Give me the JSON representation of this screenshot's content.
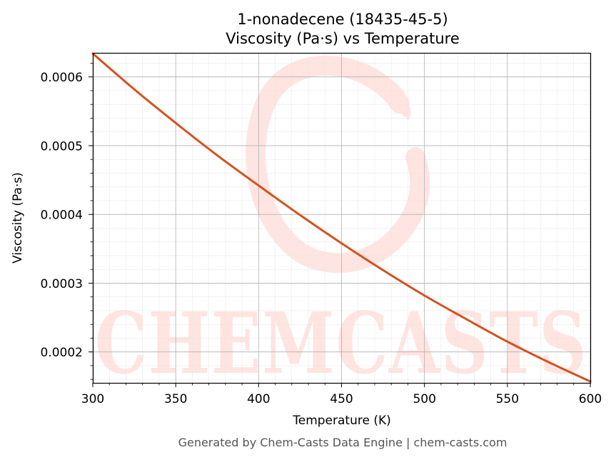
{
  "chart_data": {
    "type": "line",
    "title": "1-nonadecene (18435-45-5)",
    "subtitle": "Viscosity (Pa·s) vs Temperature",
    "xlabel": "Temperature (K)",
    "ylabel": "Viscosity (Pa·s)",
    "xlim": [
      300,
      600
    ],
    "ylim": [
      0.000155,
      0.000635
    ],
    "xticks": [
      300,
      350,
      400,
      450,
      500,
      550,
      600
    ],
    "xtick_labels": [
      "300",
      "350",
      "400",
      "450",
      "500",
      "550",
      "600"
    ],
    "yticks": [
      0.0002,
      0.0003,
      0.0004,
      0.0005,
      0.0006
    ],
    "ytick_labels": [
      "0.0002",
      "0.0003",
      "0.0004",
      "0.0005",
      "0.0006"
    ],
    "grid": true,
    "series": [
      {
        "color": "#d4521f",
        "x": [
          300,
          325,
          350,
          375,
          400,
          425,
          450,
          475,
          500,
          525,
          550,
          575,
          600
        ],
        "y": [
          0.000634,
          0.000582,
          0.000533,
          0.000486,
          0.000442,
          0.000399,
          0.000358,
          0.000319,
          0.000282,
          0.000248,
          0.000215,
          0.000185,
          0.000157
        ]
      }
    ]
  },
  "watermark": {
    "text": "CHEMCASTS",
    "color": "#ff8a78"
  },
  "footer": "Generated by Chem-Casts Data Engine | chem-casts.com"
}
